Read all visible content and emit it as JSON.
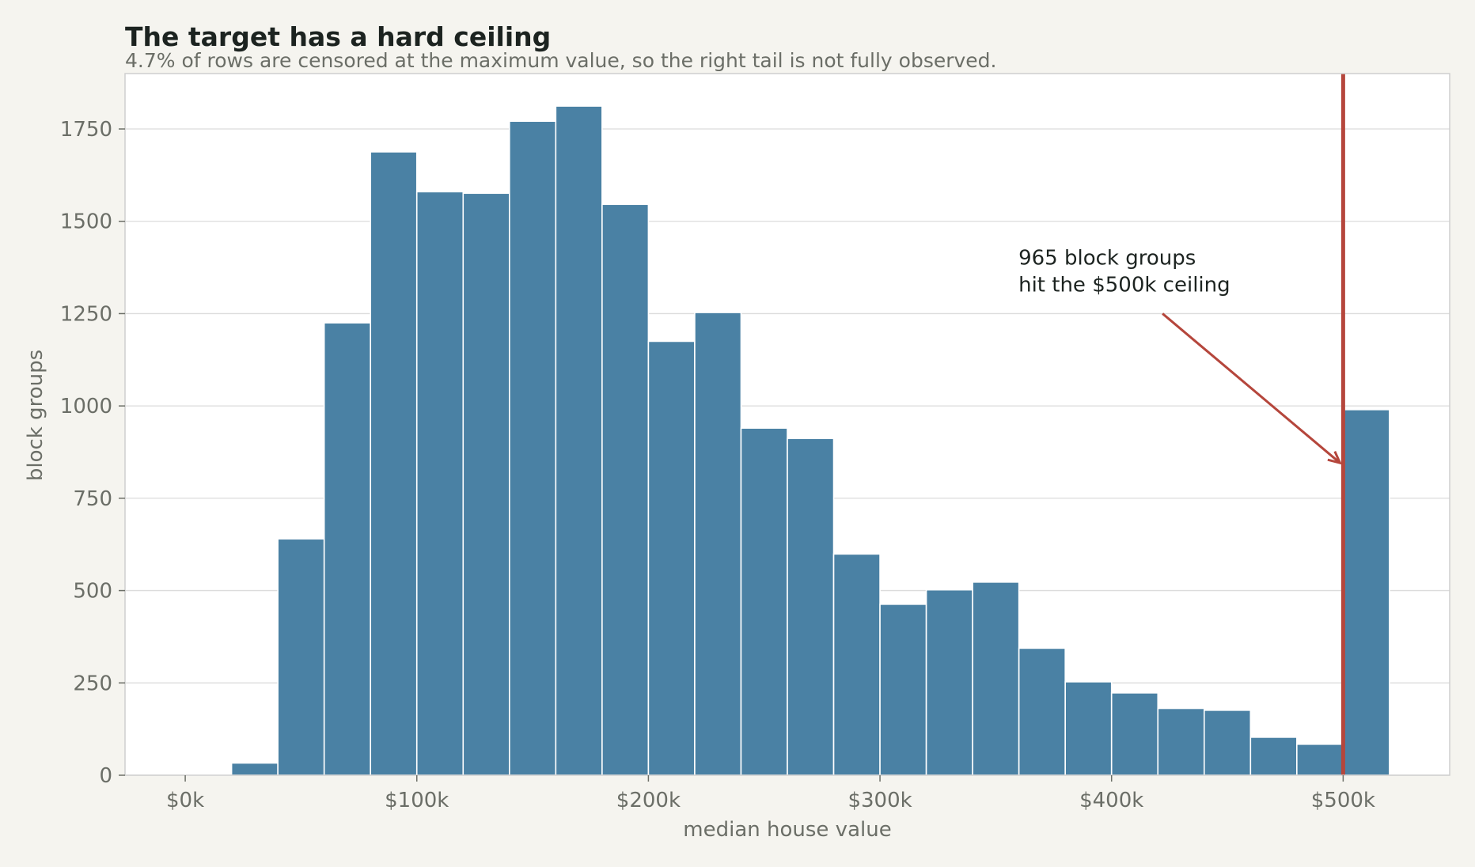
{
  "chart_data": {
    "type": "bar",
    "title": "The target has a hard ceiling",
    "subtitle": "4.7% of rows are censored at the maximum value, so the right tail is not fully observed.",
    "xlabel": "median house value",
    "ylabel": "block groups",
    "x_ticks": [
      {
        "value": 0,
        "label": "$0k"
      },
      {
        "value": 100000,
        "label": "$100k"
      },
      {
        "value": 200000,
        "label": "$200k"
      },
      {
        "value": 300000,
        "label": "$300k"
      },
      {
        "value": 400000,
        "label": "$400k"
      },
      {
        "value": 500000,
        "label": "$500k"
      }
    ],
    "y_ticks": [
      {
        "value": 0,
        "label": "0"
      },
      {
        "value": 250,
        "label": "250"
      },
      {
        "value": 500,
        "label": "500"
      },
      {
        "value": 750,
        "label": "750"
      },
      {
        "value": 1000,
        "label": "1000"
      },
      {
        "value": 1250,
        "label": "1250"
      },
      {
        "value": 1500,
        "label": "1500"
      },
      {
        "value": 1750,
        "label": "1750"
      }
    ],
    "xlim": [
      -26000,
      546000
    ],
    "ylim": [
      0,
      1900
    ],
    "bin_width": 20000,
    "bins": [
      {
        "x0": 0,
        "count": 2
      },
      {
        "x0": 20000,
        "count": 33
      },
      {
        "x0": 40000,
        "count": 640
      },
      {
        "x0": 60000,
        "count": 1225
      },
      {
        "x0": 80000,
        "count": 1688
      },
      {
        "x0": 100000,
        "count": 1580
      },
      {
        "x0": 120000,
        "count": 1576
      },
      {
        "x0": 140000,
        "count": 1771
      },
      {
        "x0": 160000,
        "count": 1812
      },
      {
        "x0": 180000,
        "count": 1546
      },
      {
        "x0": 200000,
        "count": 1175
      },
      {
        "x0": 220000,
        "count": 1253
      },
      {
        "x0": 240000,
        "count": 940
      },
      {
        "x0": 260000,
        "count": 912
      },
      {
        "x0": 280000,
        "count": 599
      },
      {
        "x0": 300000,
        "count": 463
      },
      {
        "x0": 320000,
        "count": 502
      },
      {
        "x0": 340000,
        "count": 523
      },
      {
        "x0": 360000,
        "count": 344
      },
      {
        "x0": 380000,
        "count": 253
      },
      {
        "x0": 400000,
        "count": 223
      },
      {
        "x0": 420000,
        "count": 181
      },
      {
        "x0": 440000,
        "count": 176
      },
      {
        "x0": 460000,
        "count": 103
      },
      {
        "x0": 480000,
        "count": 84
      },
      {
        "x0": 500000,
        "count": 990
      }
    ],
    "ceiling": {
      "value": 500000
    },
    "annotation": {
      "lines": [
        "965 block groups",
        "hit the $500k ceiling"
      ],
      "arrow_from": [
        422000,
        1250
      ],
      "arrow_to": [
        500000,
        850
      ]
    },
    "grid": "y",
    "colors": {
      "bars": "#4a81a4",
      "bar_edge": "#ffffff",
      "ceiling": "#b5463c",
      "grid": "#dcdcdc",
      "plot_bg": "#ffffff",
      "figure_bg": "#f5f4ef",
      "axis": "#cfcfcf"
    }
  }
}
